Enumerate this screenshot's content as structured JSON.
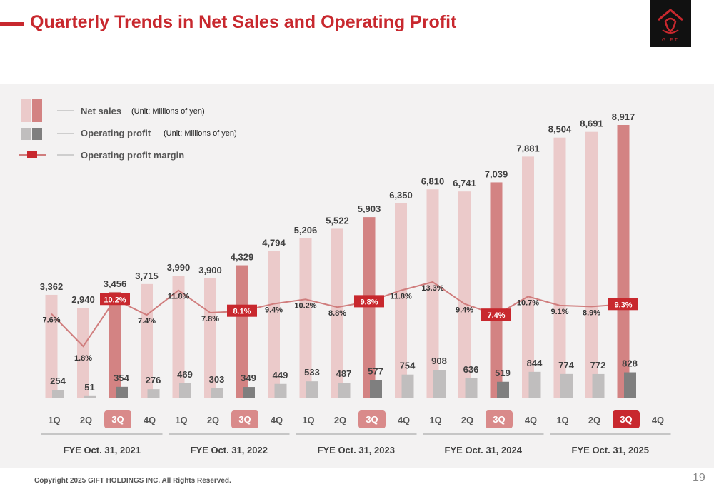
{
  "header": {
    "title": "Quarterly Trends in Net Sales and Operating Profit",
    "logo_text": "GIFT"
  },
  "footer": {
    "copyright": "Copyright 2025 GIFT HOLDINGS INC. All Rights Reserved.",
    "page_number": "19"
  },
  "legend": {
    "net_sales": "Net sales",
    "net_sales_unit": "(Unit: Millions of yen)",
    "operating_profit": "Operating profit",
    "operating_profit_unit": "(Unit: Millions of yen)",
    "margin": "Operating profit margin"
  },
  "colors": {
    "accent": "#c8282e",
    "net_sales": "#ebcaca",
    "net_sales_highlight": "#d38383",
    "operating_profit": "#c0bebe",
    "operating_profit_highlight": "#7f7f7f",
    "margin_line": "#d07d7d",
    "tag_3q": "#d98a8a"
  },
  "chart_data": {
    "type": "bar",
    "title": "Quarterly Trends in Net Sales and Operating Profit",
    "ylabel": "Millions of yen",
    "ylim": [
      0,
      9000
    ],
    "categories": [
      "1Q",
      "2Q",
      "3Q",
      "4Q",
      "1Q",
      "2Q",
      "3Q",
      "4Q",
      "1Q",
      "2Q",
      "3Q",
      "4Q",
      "1Q",
      "2Q",
      "3Q",
      "4Q",
      "1Q",
      "2Q",
      "3Q",
      "4Q"
    ],
    "fiscal_years": [
      "FYE Oct. 31, 2021",
      "FYE Oct. 31, 2022",
      "FYE Oct. 31, 2023",
      "FYE Oct. 31, 2024",
      "FYE Oct. 31, 2025"
    ],
    "series": [
      {
        "name": "Net sales",
        "unit": "Millions of yen",
        "values": [
          3362,
          2940,
          3456,
          3715,
          3990,
          3900,
          4329,
          4794,
          5206,
          5522,
          5903,
          6350,
          6810,
          6741,
          7039,
          7881,
          8504,
          8691,
          8917,
          null
        ],
        "labels": [
          "3,362",
          "2,940",
          "3,456",
          "3,715",
          "3,990",
          "3,900",
          "4,329",
          "4,794",
          "5,206",
          "5,522",
          "5,903",
          "6,350",
          "6,810",
          "6,741",
          "7,039",
          "7,881",
          "8,504",
          "8,691",
          "8,917",
          ""
        ]
      },
      {
        "name": "Operating profit",
        "unit": "Millions of yen",
        "values": [
          254,
          51,
          354,
          276,
          469,
          303,
          349,
          449,
          533,
          487,
          577,
          754,
          908,
          636,
          519,
          844,
          774,
          772,
          828,
          null
        ],
        "labels": [
          "254",
          "51",
          "354",
          "276",
          "469",
          "303",
          "349",
          "449",
          "533",
          "487",
          "577",
          "754",
          "908",
          "636",
          "519",
          "844",
          "774",
          "772",
          "828",
          ""
        ]
      },
      {
        "name": "Operating profit margin",
        "unit": "%",
        "values": [
          7.6,
          1.8,
          10.2,
          7.4,
          11.8,
          7.8,
          8.1,
          9.4,
          10.2,
          8.8,
          9.8,
          11.8,
          13.3,
          9.4,
          7.4,
          10.7,
          9.1,
          8.9,
          9.3,
          null
        ],
        "labels": [
          "7.6%",
          "1.8%",
          "10.2%",
          "7.4%",
          "11.8%",
          "7.8%",
          "8.1%",
          "9.4%",
          "10.2%",
          "8.8%",
          "9.8%",
          "11.8%",
          "13.3%",
          "9.4%",
          "7.4%",
          "10.7%",
          "9.1%",
          "8.9%",
          "9.3%",
          ""
        ]
      }
    ],
    "highlighted_quarter": "3Q"
  }
}
